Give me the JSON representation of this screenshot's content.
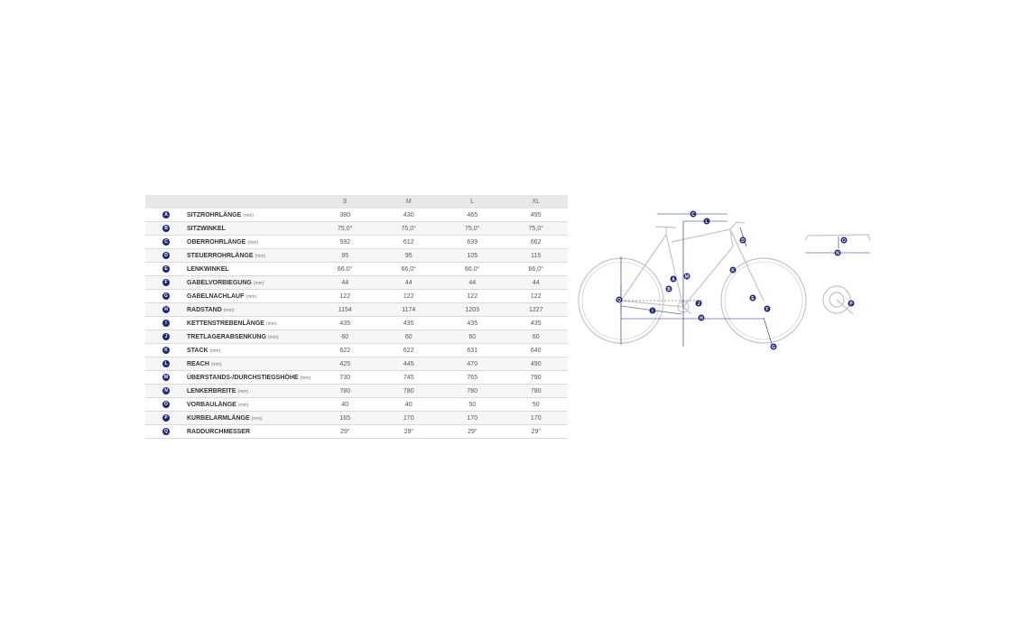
{
  "table": {
    "sizes": [
      "S",
      "M",
      "L",
      "XL"
    ],
    "rows": [
      {
        "key": "A",
        "label": "SITZROHRLÄNGE",
        "unit": "(mm)",
        "values": [
          "380",
          "430",
          "465",
          "495"
        ]
      },
      {
        "key": "B",
        "label": "SITZWINKEL",
        "unit": "",
        "values": [
          "75,0°",
          "75,0°",
          "75,0°",
          "75,0°"
        ]
      },
      {
        "key": "C",
        "label": "OBERROHRLÄNGE",
        "unit": "(mm)",
        "values": [
          "592",
          "612",
          "639",
          "662"
        ]
      },
      {
        "key": "D",
        "label": "STEUERROHRLÄNGE",
        "unit": "(mm)",
        "values": [
          "95",
          "95",
          "105",
          "115"
        ]
      },
      {
        "key": "E",
        "label": "LENKWINKEL",
        "unit": "",
        "values": [
          "66,0°",
          "66,0°",
          "66,0°",
          "66,0°"
        ]
      },
      {
        "key": "F",
        "label": "GABELVORBIEGUNG",
        "unit": "(mm)",
        "values": [
          "44",
          "44",
          "44",
          "44"
        ]
      },
      {
        "key": "G",
        "label": "GABELNACHLAUF",
        "unit": "(mm)",
        "values": [
          "122",
          "122",
          "122",
          "122"
        ]
      },
      {
        "key": "H",
        "label": "RADSTAND",
        "unit": "(mm)",
        "values": [
          "1154",
          "1174",
          "1203",
          "1227"
        ]
      },
      {
        "key": "I",
        "label": "KETTENSTREBENLÄNGE",
        "unit": "(mm)",
        "values": [
          "435",
          "435",
          "435",
          "435"
        ]
      },
      {
        "key": "J",
        "label": "TRETLAGERABSENKUNG",
        "unit": "(mm)",
        "values": [
          "60",
          "60",
          "60",
          "60"
        ]
      },
      {
        "key": "K",
        "label": "STACK",
        "unit": "(mm)",
        "values": [
          "622",
          "622",
          "631",
          "640"
        ]
      },
      {
        "key": "L",
        "label": "REACH",
        "unit": "(mm)",
        "values": [
          "425",
          "445",
          "470",
          "490"
        ]
      },
      {
        "key": "M",
        "label": "ÜBERSTANDS-/DURCHSTIEGSHÖHE",
        "unit": "(mm)",
        "values": [
          "730",
          "745",
          "765",
          "790"
        ]
      },
      {
        "key": "N",
        "label": "LENKERBREITE",
        "unit": "(mm)",
        "values": [
          "780",
          "780",
          "780",
          "780"
        ]
      },
      {
        "key": "O",
        "label": "VORBAULÄNGE",
        "unit": "(mm)",
        "values": [
          "40",
          "40",
          "50",
          "50"
        ]
      },
      {
        "key": "P",
        "label": "KURBELARMLÄNGE",
        "unit": "(mm)",
        "values": [
          "165",
          "170",
          "170",
          "170"
        ]
      },
      {
        "key": "Q",
        "label": "RADDURCHMESSER",
        "unit": "",
        "values": [
          "29\"",
          "29\"",
          "29\"",
          "29\""
        ]
      }
    ]
  },
  "diagram": {
    "markers": {
      "C": "C",
      "L": "L",
      "D": "D",
      "A": "A",
      "B": "B",
      "K": "K",
      "M": "M",
      "E": "E",
      "F": "F",
      "Q": "Q",
      "I": "I",
      "J": "J",
      "H": "H",
      "G": "G",
      "O": "O",
      "N": "N",
      "P": "P"
    },
    "colors": {
      "accent": "#1f2a6e",
      "frame": "#c4c4c4"
    }
  }
}
